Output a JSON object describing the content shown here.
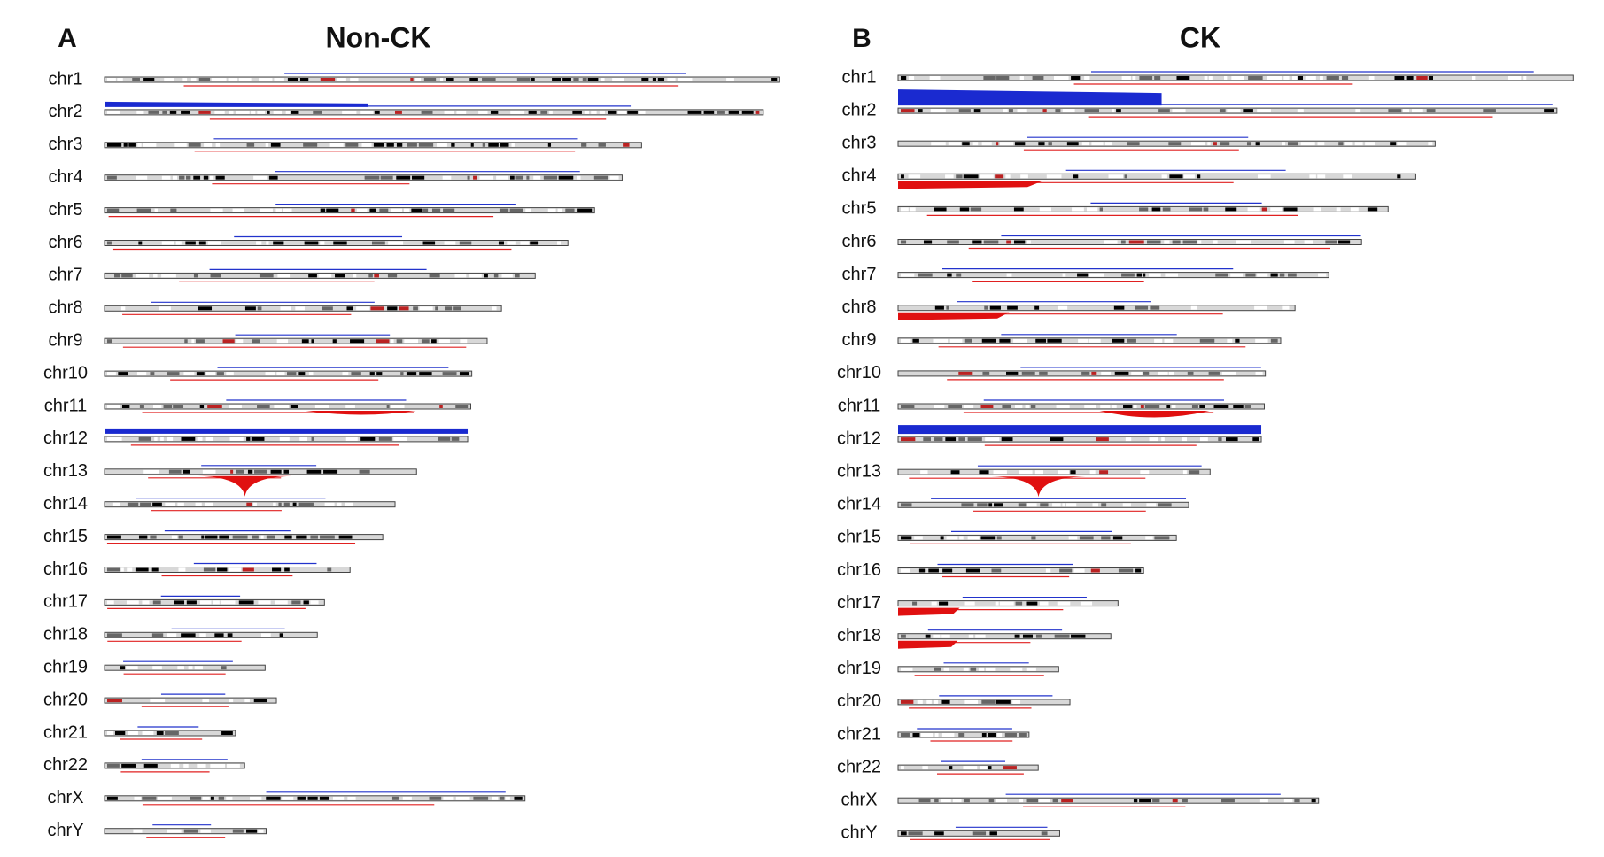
{
  "panels": [
    {
      "letter": "A",
      "title": "Non-CK",
      "chromosomes": [
        "chr1",
        "chr2",
        "chr3",
        "chr4",
        "chr5",
        "chr6",
        "chr7",
        "chr8",
        "chr9",
        "chr10",
        "chr11",
        "chr12",
        "chr13",
        "chr14",
        "chr15",
        "chr16",
        "chr17",
        "chr18",
        "chr19",
        "chr20",
        "chr21",
        "chr22",
        "chrX",
        "chrY"
      ]
    },
    {
      "letter": "B",
      "title": "CK",
      "chromosomes": [
        "chr1",
        "chr2",
        "chr3",
        "chr4",
        "chr5",
        "chr6",
        "chr7",
        "chr8",
        "chr9",
        "chr10",
        "chr11",
        "chr12",
        "chr13",
        "chr14",
        "chr15",
        "chr16",
        "chr17",
        "chr18",
        "chr19",
        "chr20",
        "chr21",
        "chr22",
        "chrX",
        "chrY"
      ]
    }
  ]
}
